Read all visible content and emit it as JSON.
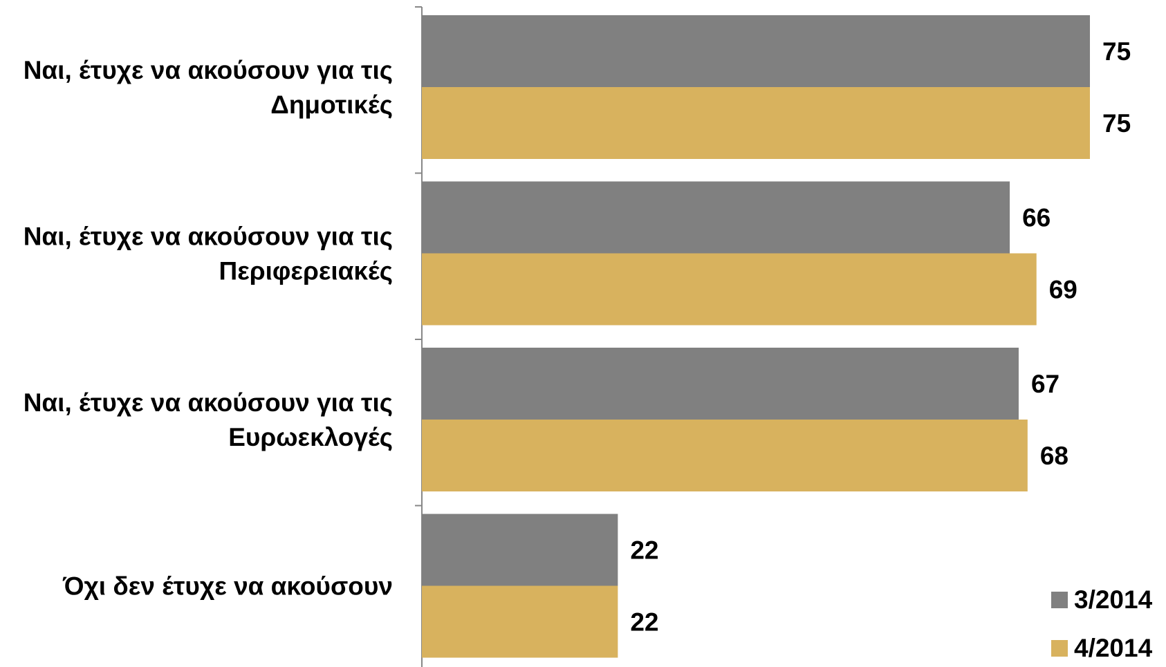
{
  "chart_data": {
    "type": "bar",
    "orientation": "horizontal",
    "categories": [
      [
        "Ναι, έτυχε να ακούσουν για τις",
        "Δημοτικές"
      ],
      [
        "Ναι, έτυχε να ακούσουν για τις",
        "Περιφερειακές"
      ],
      [
        "Ναι, έτυχε να ακούσουν για τις",
        "Ευρωεκλογές"
      ],
      [
        "Όχι δεν έτυχε να ακούσουν"
      ]
    ],
    "series": [
      {
        "name": "3/2014",
        "color": "#808080",
        "values": [
          75,
          66,
          67,
          22
        ]
      },
      {
        "name": "4/2014",
        "color": "#D8B25E",
        "values": [
          75,
          69,
          68,
          22
        ]
      }
    ],
    "xlim": [
      0,
      83
    ],
    "grid": false,
    "legend": "bottom-right",
    "data_labels": true
  }
}
